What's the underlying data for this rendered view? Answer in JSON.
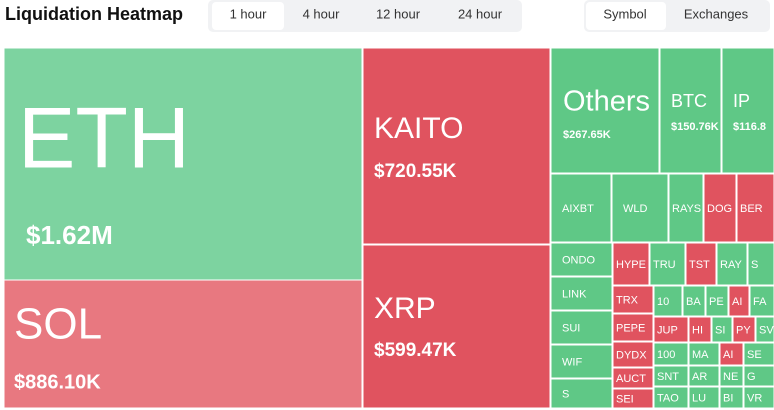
{
  "header": {
    "title": "Liquidation Heatmap",
    "time_tabs": [
      "1 hour",
      "4 hour",
      "12 hour",
      "24 hour"
    ],
    "view_tabs": [
      "Symbol",
      "Exchanges"
    ]
  },
  "tiles": [
    {
      "label": "ETH",
      "value": "$1.62M"
    },
    {
      "label": "SOL",
      "value": "$886.10K"
    },
    {
      "label": "KAITO",
      "value": "$720.55K"
    },
    {
      "label": "XRP",
      "value": "$599.47K"
    },
    {
      "label": "Others",
      "value": "$267.65K"
    },
    {
      "label": "BTC",
      "value": "$150.76K"
    },
    {
      "label": "IP",
      "value": "$116.8"
    },
    {
      "label": "AIXBT"
    },
    {
      "label": "WLD"
    },
    {
      "label": "RAYS"
    },
    {
      "label": "DOG"
    },
    {
      "label": "BER"
    },
    {
      "label": "ONDO"
    },
    {
      "label": "LINK"
    },
    {
      "label": "SUI"
    },
    {
      "label": "WIF"
    },
    {
      "label": "S"
    },
    {
      "label": "HYPE"
    },
    {
      "label": "TRU"
    },
    {
      "label": "TST"
    },
    {
      "label": "RAY"
    },
    {
      "label": "S"
    },
    {
      "label": "TRX"
    },
    {
      "label": "PEPE"
    },
    {
      "label": "DYDX"
    },
    {
      "label": "AUCT"
    },
    {
      "label": "SEI"
    },
    {
      "label": "10"
    },
    {
      "label": "BA"
    },
    {
      "label": "PE"
    },
    {
      "label": "AI"
    },
    {
      "label": "FA"
    },
    {
      "label": "JUP"
    },
    {
      "label": "HI"
    },
    {
      "label": "SI"
    },
    {
      "label": "PY"
    },
    {
      "label": "SV"
    },
    {
      "label": "100"
    },
    {
      "label": "MA"
    },
    {
      "label": "AI"
    },
    {
      "label": "SE"
    },
    {
      "label": "SNT"
    },
    {
      "label": "AR"
    },
    {
      "label": "NE"
    },
    {
      "label": "G"
    },
    {
      "label": "TAO"
    },
    {
      "label": "LU"
    },
    {
      "label": "BI"
    },
    {
      "label": "VR"
    }
  ]
}
